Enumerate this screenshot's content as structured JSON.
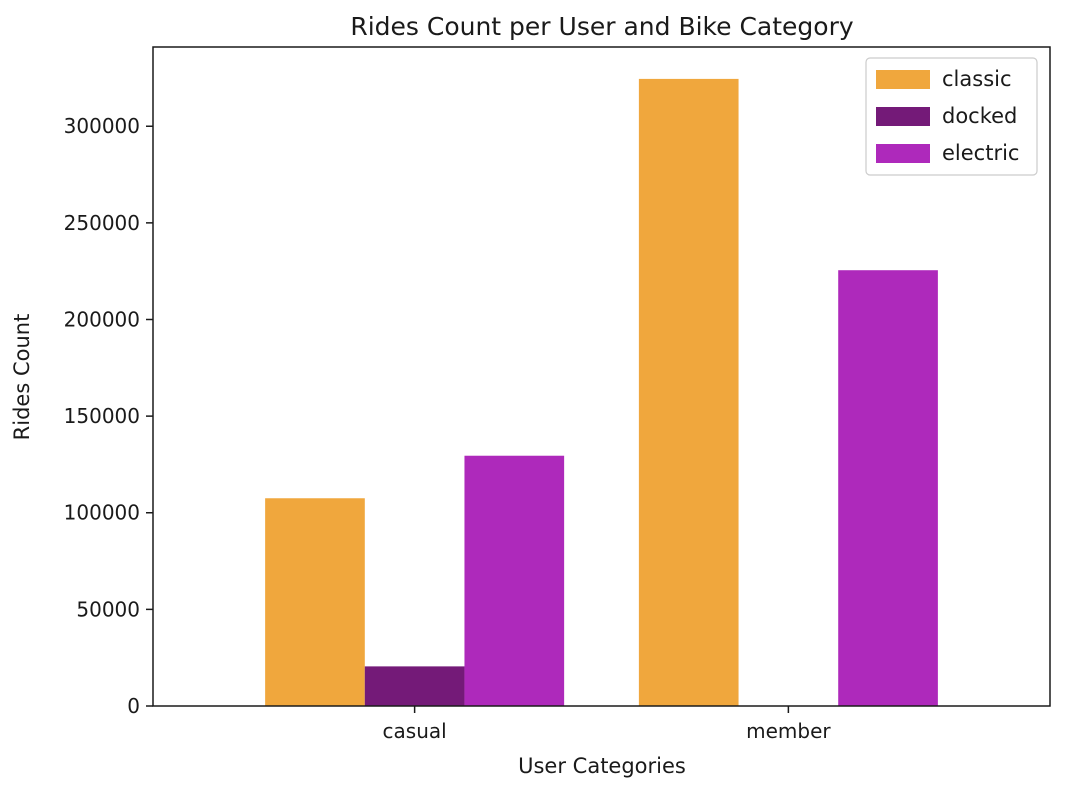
{
  "chart_data": {
    "type": "bar",
    "title": "Rides Count per User and Bike Category",
    "xlabel": "User Categories",
    "ylabel": "Rides Count",
    "categories": [
      "casual",
      "member"
    ],
    "series": [
      {
        "name": "classic",
        "color": "#f0a73d",
        "values": [
          107500,
          324500
        ]
      },
      {
        "name": "docked",
        "color": "#741a78",
        "values": [
          20500,
          0
        ]
      },
      {
        "name": "electric",
        "color": "#ae29bb",
        "values": [
          129500,
          225500
        ]
      }
    ],
    "ylim": [
      0,
      341000
    ],
    "yticks": [
      0,
      50000,
      100000,
      150000,
      200000,
      250000,
      300000
    ],
    "legend": "top-right",
    "grid": false
  }
}
